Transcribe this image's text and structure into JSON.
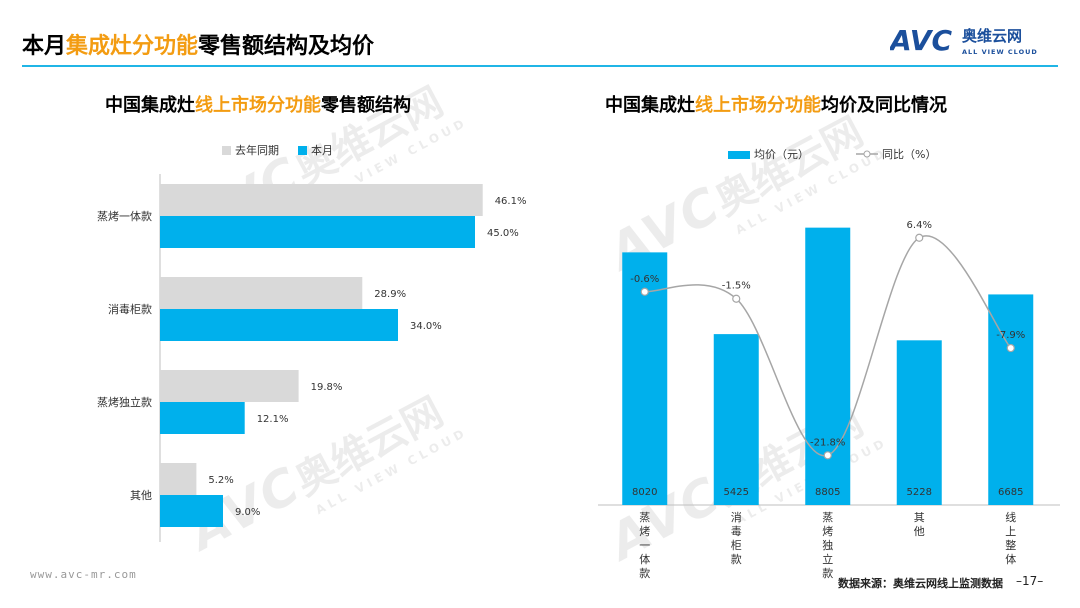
{
  "header": {
    "title_parts": [
      "本月",
      "集成灶分功能",
      "零售额结构及均价"
    ],
    "logo_brand": "AVC",
    "logo_cn": "奥维云网",
    "logo_en": "ALL VIEW CLOUD"
  },
  "footer": {
    "website": "www.avc-mr.com",
    "source": "数据来源：奥维云网线上监测数据",
    "page": "–17–"
  },
  "watermark": {
    "brand": "AVC",
    "cn": "奥维云网",
    "en": "ALL VIEW CLOUD"
  },
  "colors": {
    "accent": "#00b0ec",
    "highlight": "#f39c12",
    "gray": "#d9d9d9",
    "rule": "#20b5e6"
  },
  "chart_data": [
    {
      "type": "bar",
      "orientation": "horizontal",
      "title_parts": [
        "中国集成灶",
        "线上市场分功能",
        "零售额结构"
      ],
      "categories": [
        "蒸烤一体款",
        "消毒柜款",
        "蒸烤独立款",
        "其他"
      ],
      "series": [
        {
          "name": "去年同期",
          "values": [
            46.1,
            28.9,
            19.8,
            5.2
          ],
          "labels": [
            "46.1%",
            "28.9%",
            "19.8%",
            "5.2%"
          ],
          "color": "#d9d9d9"
        },
        {
          "name": "本月",
          "values": [
            45.0,
            34.0,
            12.1,
            9.0
          ],
          "labels": [
            "45.0%",
            "34.0%",
            "12.1%",
            "9.0%"
          ],
          "color": "#00b0ec"
        }
      ],
      "xlim": [
        0,
        50
      ],
      "legend": "top",
      "grid": false
    },
    {
      "type": "bar+line",
      "title_parts": [
        "中国集成灶",
        "线上市场分功能",
        "均价及同比情况"
      ],
      "categories": [
        "蒸烤一体款",
        "消毒柜款",
        "蒸烤独立款",
        "其他",
        "线上整体"
      ],
      "series": [
        {
          "name": "均价（元）",
          "type": "bar",
          "values": [
            8020,
            5425,
            8805,
            5228,
            6685
          ],
          "labels": [
            "8020",
            "5425",
            "8805",
            "5228",
            "6685"
          ],
          "color": "#00b0ec"
        },
        {
          "name": "同比（%）",
          "type": "line",
          "values": [
            -0.6,
            -1.5,
            -21.8,
            6.4,
            -7.9
          ],
          "labels": [
            "-0.6%",
            "-1.5%",
            "-21.8%",
            "6.4%",
            "-7.9%"
          ],
          "color": "#a6a6a6"
        }
      ],
      "ylim_bar": [
        0,
        10000
      ],
      "ylim_line": [
        -25,
        10
      ],
      "legend": "top",
      "grid": false
    }
  ]
}
